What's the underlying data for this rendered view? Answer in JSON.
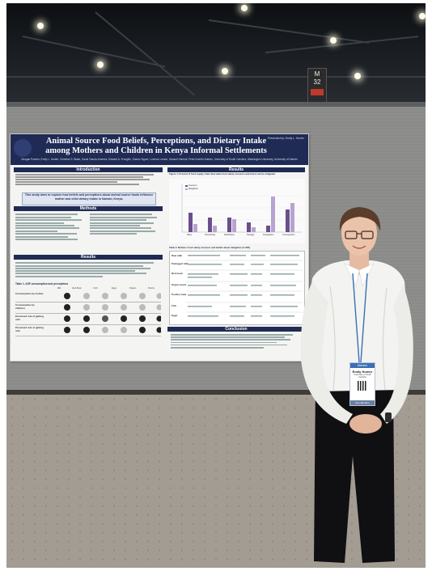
{
  "poster": {
    "title_line1": "Animal Source Food Beliefs, Perceptions, and Dietary Intake",
    "title_line2": "among Mothers and Children in Kenya Informal Settlements",
    "authors": "Morgan Powers, Emily L. Hunter, Christine S. Blake, David Garcia-Jimenez, Edward A. Frongillo, Sharon Ngure, Lorenzo Loeser, Samuel Kahindi, Peter Kurirthi-Kabuto, University of South Carolina, Washington University, University of Nairobi",
    "presenter": "Presented by: Emily L. Hunter",
    "sections": {
      "introduction": "Introduction",
      "methods": "Methods",
      "results_left": "Results",
      "results_right": "Results",
      "conclusion": "Conclusion"
    },
    "aim": "This study aims to explore how beliefs and perceptions about animal source foods influence mother and child dietary intake in Nairobi, Kenya.",
    "figure1_caption": "Figure 1. Percent of food supply chain that value food safety concerns and how it can be mitigated",
    "table1_caption": "Table 1. ASF consumption and perceptions",
    "table2_caption": "Table 2. Mothers' food safety concerns and beliefs about mitigation (n=300)",
    "table1_columns": [
      "Milk",
      "Red Meat",
      "Fish",
      "Eggs",
      "Organs",
      "Poultry"
    ],
    "table1_rows": [
      "Consumption by mother",
      "Consumption by children",
      "Perceived risk of getting sick",
      "Perceived risk of getting sick"
    ],
    "chart_legend": [
      "Concern",
      "Mitigation"
    ],
    "chart_categories": [
      "Dairy",
      "Processing",
      "Distribution",
      "Storage",
      "Preparation",
      "Consumption"
    ],
    "table2_rows": [
      "Raw milk",
      "Packaged milk",
      "Red meat",
      "Organ meats",
      "Poultry meat",
      "Fish",
      "Eggs"
    ]
  },
  "badge": {
    "ribbon": "Member",
    "name": "Emily Hunter",
    "affiliation": "University of South Carolina",
    "footer": "Non-Member"
  },
  "venue_sign": {
    "code": "M",
    "number": "32"
  }
}
